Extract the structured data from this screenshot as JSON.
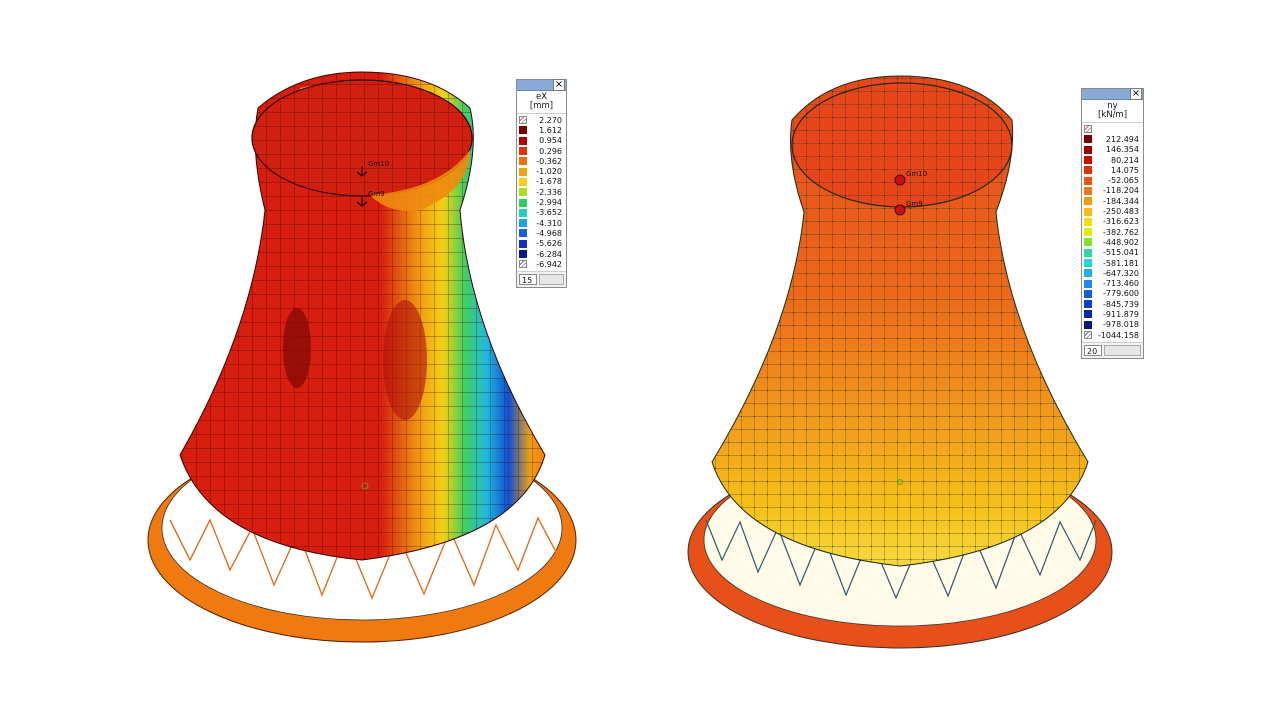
{
  "left_model": {
    "node_label_top": "Gm10",
    "node_label_mid": "Gm9",
    "colors": {
      "shell_main": "#d9200f",
      "shell_dark": "#b0100a",
      "orange": "#f07a10",
      "yellow": "#f6c000",
      "green": "#50c030",
      "cyan": "#20c8d8",
      "blue": "#1050d0",
      "navy": "#0a1a80"
    }
  },
  "right_model": {
    "node_label_top": "Gm10",
    "node_label_mid": "Gm9",
    "colors": {
      "shell_main": "#e8501a",
      "shell_light": "#f08a20",
      "yellow": "#f5c418",
      "white": "#fffbe8"
    }
  },
  "legend_left": {
    "title_line1": "eX",
    "title_line2": "[mm]",
    "items": [
      {
        "value": "2.270",
        "color": "hatch"
      },
      {
        "value": "1.612",
        "color": "#7a0000"
      },
      {
        "value": "0.954",
        "color": "#b00000"
      },
      {
        "value": "0.296",
        "color": "#e03010"
      },
      {
        "value": "-0.362",
        "color": "#f07010"
      },
      {
        "value": "-1.020",
        "color": "#f4a010"
      },
      {
        "value": "-1.678",
        "color": "#f6d010"
      },
      {
        "value": "-2.336",
        "color": "#a8e020"
      },
      {
        "value": "-2.994",
        "color": "#30d060"
      },
      {
        "value": "-3.652",
        "color": "#20d0c0"
      },
      {
        "value": "-4.310",
        "color": "#20a0e8"
      },
      {
        "value": "-4.968",
        "color": "#1060e0"
      },
      {
        "value": "-5.626",
        "color": "#1030c0"
      },
      {
        "value": "-6.284",
        "color": "#0a1890"
      },
      {
        "value": "-6.942",
        "color": "hatch-blue"
      }
    ],
    "footer_number": "15"
  },
  "legend_right": {
    "title_line1": "ny",
    "title_line2": "[kN/m]",
    "items": [
      {
        "value": "",
        "color": "hatch"
      },
      {
        "value": "212.494",
        "color": "#7a0000"
      },
      {
        "value": "146.354",
        "color": "#a00000"
      },
      {
        "value": "80.214",
        "color": "#c81000"
      },
      {
        "value": "14.075",
        "color": "#e03010"
      },
      {
        "value": "-52.065",
        "color": "#ec5410"
      },
      {
        "value": "-118.204",
        "color": "#f07810"
      },
      {
        "value": "-184.344",
        "color": "#f49a10"
      },
      {
        "value": "-250.483",
        "color": "#f6bc10"
      },
      {
        "value": "-316.623",
        "color": "#f6dc10"
      },
      {
        "value": "-382.762",
        "color": "#d8f010"
      },
      {
        "value": "-448.902",
        "color": "#80e030"
      },
      {
        "value": "-515.041",
        "color": "#30d8a0"
      },
      {
        "value": "-581.181",
        "color": "#20d8d8"
      },
      {
        "value": "-647.320",
        "color": "#20b0e8"
      },
      {
        "value": "-713.460",
        "color": "#2088e8"
      },
      {
        "value": "-779.600",
        "color": "#1060e0"
      },
      {
        "value": "-845.739",
        "color": "#1040c8"
      },
      {
        "value": "-911.879",
        "color": "#1028a8"
      },
      {
        "value": "-978.018",
        "color": "#0a1888"
      },
      {
        "value": "-1044.158",
        "color": "hatch-blue"
      }
    ],
    "footer_number": "20"
  }
}
